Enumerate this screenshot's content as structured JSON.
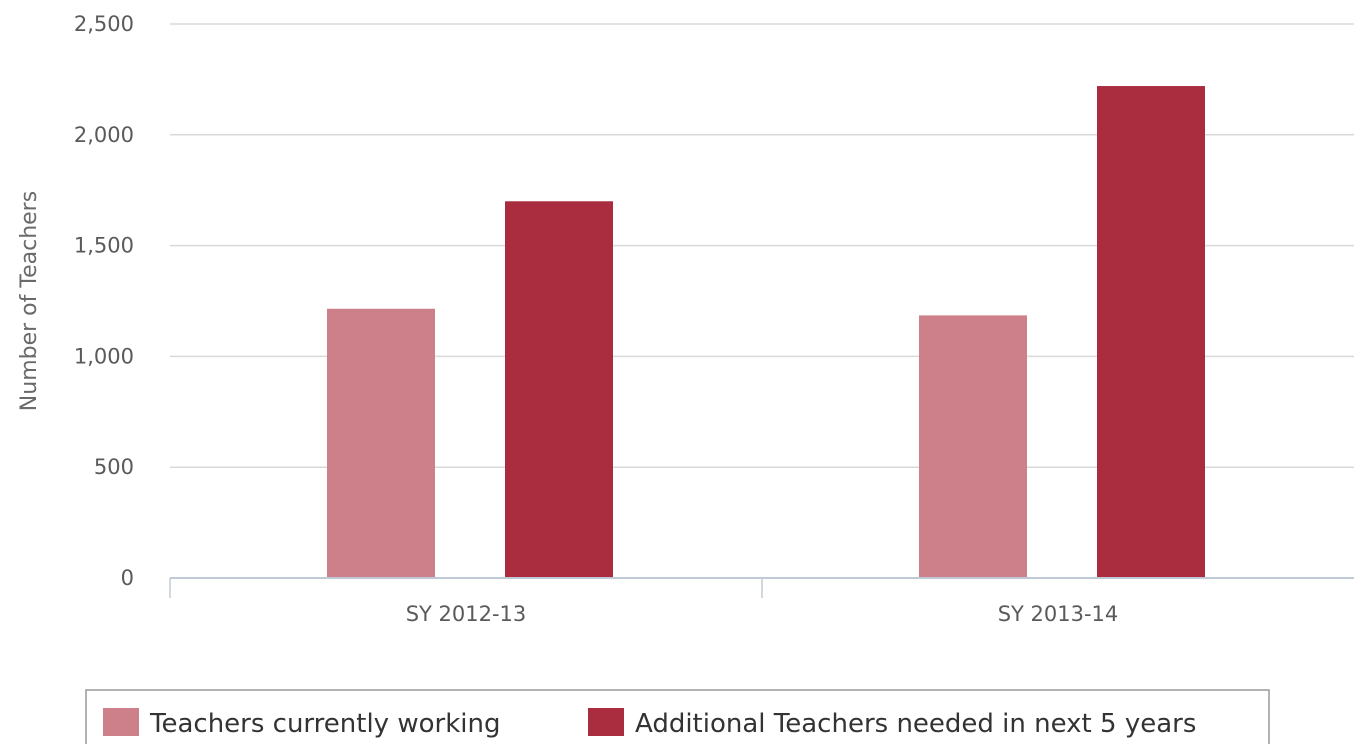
{
  "chart_data": {
    "type": "bar",
    "title": "",
    "xlabel": "",
    "ylabel": "Number of Teachers",
    "categories": [
      "SY 2012-13",
      "SY 2013-14"
    ],
    "series": [
      {
        "name": "Teachers currently working",
        "color": "#cd7f8a",
        "values": [
          1215,
          1185
        ]
      },
      {
        "name": "Additional Teachers needed in next 5 years",
        "color": "#a92c3f",
        "values": [
          1700,
          2220
        ]
      }
    ],
    "ylim": [
      0,
      2500
    ],
    "yticks": [
      0,
      500,
      1000,
      1500,
      2000,
      2500
    ],
    "ytick_labels": [
      "0",
      "500",
      "1,000",
      "1,500",
      "2,000",
      "2,500"
    ],
    "grid": true,
    "legend_position": "bottom-center"
  }
}
